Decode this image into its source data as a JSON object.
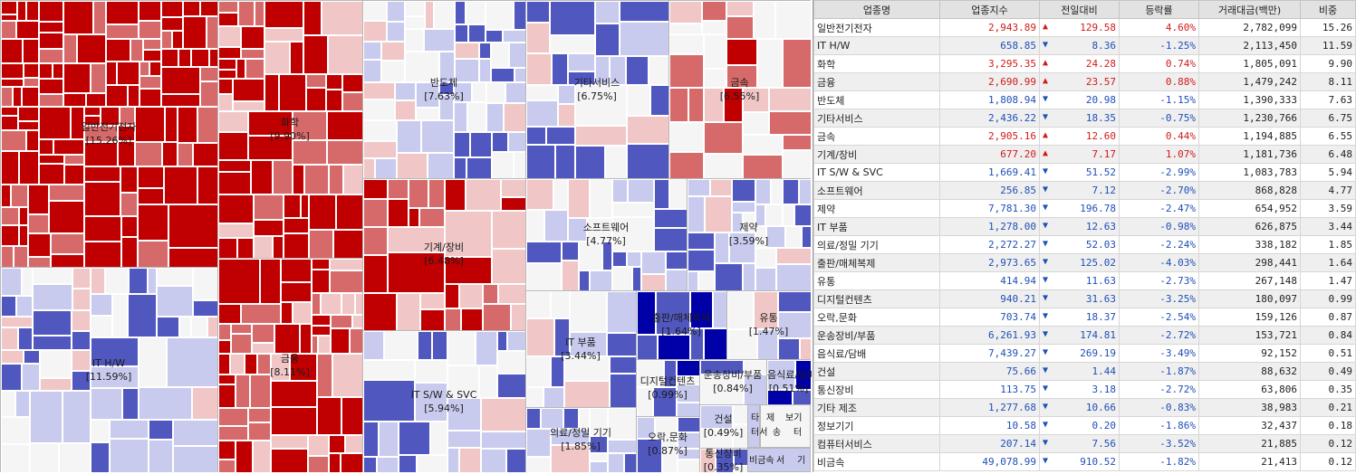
{
  "chart_data": {
    "type": "treemap",
    "title": "",
    "colors": {
      "strong_up": "#c00000",
      "up": "#d66a6a",
      "slight_up": "#f0c6c6",
      "flat": "#f5f5f5",
      "slight_down": "#c8cbee",
      "down": "#5058c0",
      "strong_down": "#0000a8"
    },
    "sectors": [
      {
        "name": "일반전기전자",
        "share_label": "[15.26%]",
        "weight": 15.26,
        "change_pct": 4.6
      },
      {
        "name": "IT H/W",
        "share_label": "[11.59%]",
        "weight": 11.59,
        "change_pct": -1.25
      },
      {
        "name": "화학",
        "share_label": "[9.90%]",
        "weight": 9.9,
        "change_pct": 0.74
      },
      {
        "name": "금융",
        "share_label": "[8.11%]",
        "weight": 8.11,
        "change_pct": 0.88
      },
      {
        "name": "반도체",
        "share_label": "[7.63%]",
        "weight": 7.63,
        "change_pct": -1.15
      },
      {
        "name": "기타서비스",
        "share_label": "[6.75%]",
        "weight": 6.75,
        "change_pct": -0.75
      },
      {
        "name": "금속",
        "share_label": "[6.55%]",
        "weight": 6.55,
        "change_pct": 0.44
      },
      {
        "name": "기계/장비",
        "share_label": "[6.48%]",
        "weight": 6.48,
        "change_pct": 1.07
      },
      {
        "name": "IT S/W & SVC",
        "share_label": "[5.94%]",
        "weight": 5.94,
        "change_pct": -2.99
      },
      {
        "name": "소프트웨어",
        "share_label": "[4.77%]",
        "weight": 4.77,
        "change_pct": -2.7
      },
      {
        "name": "제약",
        "share_label": "[3.59%]",
        "weight": 3.59,
        "change_pct": -2.47
      },
      {
        "name": "IT 부품",
        "share_label": "[3.44%]",
        "weight": 3.44,
        "change_pct": -0.98
      },
      {
        "name": "의료/정밀 기기",
        "share_label": "[1.85%]",
        "weight": 1.85,
        "change_pct": -2.24
      },
      {
        "name": "출판/매체복제",
        "share_label": "[1.64%]",
        "weight": 1.64,
        "change_pct": -4.03
      },
      {
        "name": "유통",
        "share_label": "[1.47%]",
        "weight": 1.47,
        "change_pct": -2.73
      },
      {
        "name": "디지털컨텐츠",
        "share_label": "[0.99%]",
        "weight": 0.99,
        "change_pct": -3.25
      },
      {
        "name": "오락,문화",
        "share_label": "[0.87%]",
        "weight": 0.87,
        "change_pct": -2.54
      },
      {
        "name": "운송장비/부품",
        "share_label": "[0.84%]",
        "weight": 0.84,
        "change_pct": -2.72
      },
      {
        "name": "음식료/담배",
        "share_label": "[0.51%]",
        "weight": 0.51,
        "change_pct": -3.49
      },
      {
        "name": "건설",
        "share_label": "[0.49%]",
        "weight": 0.49,
        "change_pct": -1.87
      },
      {
        "name": "통신장비",
        "share_label": "[0.35%]",
        "weight": 0.35,
        "change_pct": -2.72
      }
    ],
    "small_labels": [
      "타",
      "제",
      "보기",
      "터서",
      "송",
      "터",
      "비금속",
      "서",
      "기"
    ],
    "table": {
      "columns": [
        "업종명",
        "업종지수",
        "전일대비",
        "등락률",
        "거래대금(백만)",
        "비중"
      ],
      "rows": [
        {
          "name": "일반전기전자",
          "index": "2,943.89",
          "dir": "up",
          "change": "129.58",
          "rate": "4.60%",
          "volume": "2,782,099",
          "weight": "15.26"
        },
        {
          "name": "IT H/W",
          "index": "658.85",
          "dir": "down",
          "change": "8.36",
          "rate": "-1.25%",
          "volume": "2,113,450",
          "weight": "11.59"
        },
        {
          "name": "화학",
          "index": "3,295.35",
          "dir": "up",
          "change": "24.28",
          "rate": "0.74%",
          "volume": "1,805,091",
          "weight": "9.90"
        },
        {
          "name": "금융",
          "index": "2,690.99",
          "dir": "up",
          "change": "23.57",
          "rate": "0.88%",
          "volume": "1,479,242",
          "weight": "8.11"
        },
        {
          "name": "반도체",
          "index": "1,808.94",
          "dir": "down",
          "change": "20.98",
          "rate": "-1.15%",
          "volume": "1,390,333",
          "weight": "7.63"
        },
        {
          "name": "기타서비스",
          "index": "2,436.22",
          "dir": "down",
          "change": "18.35",
          "rate": "-0.75%",
          "volume": "1,230,766",
          "weight": "6.75"
        },
        {
          "name": "금속",
          "index": "2,905.16",
          "dir": "up",
          "change": "12.60",
          "rate": "0.44%",
          "volume": "1,194,885",
          "weight": "6.55"
        },
        {
          "name": "기계/장비",
          "index": "677.20",
          "dir": "up",
          "change": "7.17",
          "rate": "1.07%",
          "volume": "1,181,736",
          "weight": "6.48"
        },
        {
          "name": "IT S/W & SVC",
          "index": "1,669.41",
          "dir": "down",
          "change": "51.52",
          "rate": "-2.99%",
          "volume": "1,083,783",
          "weight": "5.94"
        },
        {
          "name": "소프트웨어",
          "index": "256.85",
          "dir": "down",
          "change": "7.12",
          "rate": "-2.70%",
          "volume": "868,828",
          "weight": "4.77"
        },
        {
          "name": "제약",
          "index": "7,781.30",
          "dir": "down",
          "change": "196.78",
          "rate": "-2.47%",
          "volume": "654,952",
          "weight": "3.59"
        },
        {
          "name": "IT 부품",
          "index": "1,278.00",
          "dir": "down",
          "change": "12.63",
          "rate": "-0.98%",
          "volume": "626,875",
          "weight": "3.44"
        },
        {
          "name": "의료/정밀 기기",
          "index": "2,272.27",
          "dir": "down",
          "change": "52.03",
          "rate": "-2.24%",
          "volume": "338,182",
          "weight": "1.85"
        },
        {
          "name": "출판/매체복제",
          "index": "2,973.65",
          "dir": "down",
          "change": "125.02",
          "rate": "-4.03%",
          "volume": "298,441",
          "weight": "1.64"
        },
        {
          "name": "유통",
          "index": "414.94",
          "dir": "down",
          "change": "11.63",
          "rate": "-2.73%",
          "volume": "267,148",
          "weight": "1.47"
        },
        {
          "name": "디지털컨텐츠",
          "index": "940.21",
          "dir": "down",
          "change": "31.63",
          "rate": "-3.25%",
          "volume": "180,097",
          "weight": "0.99"
        },
        {
          "name": "오락,문화",
          "index": "703.74",
          "dir": "down",
          "change": "18.37",
          "rate": "-2.54%",
          "volume": "159,126",
          "weight": "0.87"
        },
        {
          "name": "운송장비/부품",
          "index": "6,261.93",
          "dir": "down",
          "change": "174.81",
          "rate": "-2.72%",
          "volume": "153,721",
          "weight": "0.84"
        },
        {
          "name": "음식료/담배",
          "index": "7,439.27",
          "dir": "down",
          "change": "269.19",
          "rate": "-3.49%",
          "volume": "92,152",
          "weight": "0.51"
        },
        {
          "name": "건설",
          "index": "75.66",
          "dir": "down",
          "change": "1.44",
          "rate": "-1.87%",
          "volume": "88,632",
          "weight": "0.49"
        },
        {
          "name": "통신장비",
          "index": "113.75",
          "dir": "down",
          "change": "3.18",
          "rate": "-2.72%",
          "volume": "63,806",
          "weight": "0.35"
        },
        {
          "name": "기타 제조",
          "index": "1,277.68",
          "dir": "down",
          "change": "10.66",
          "rate": "-0.83%",
          "volume": "38,983",
          "weight": "0.21"
        },
        {
          "name": "정보기기",
          "index": "10.58",
          "dir": "down",
          "change": "0.20",
          "rate": "-1.86%",
          "volume": "32,437",
          "weight": "0.18"
        },
        {
          "name": "컴퓨터서비스",
          "index": "207.14",
          "dir": "down",
          "change": "7.56",
          "rate": "-3.52%",
          "volume": "21,885",
          "weight": "0.12"
        },
        {
          "name": "비금속",
          "index": "49,078.99",
          "dir": "down",
          "change": "910.52",
          "rate": "-1.82%",
          "volume": "21,413",
          "weight": "0.12"
        }
      ]
    }
  }
}
